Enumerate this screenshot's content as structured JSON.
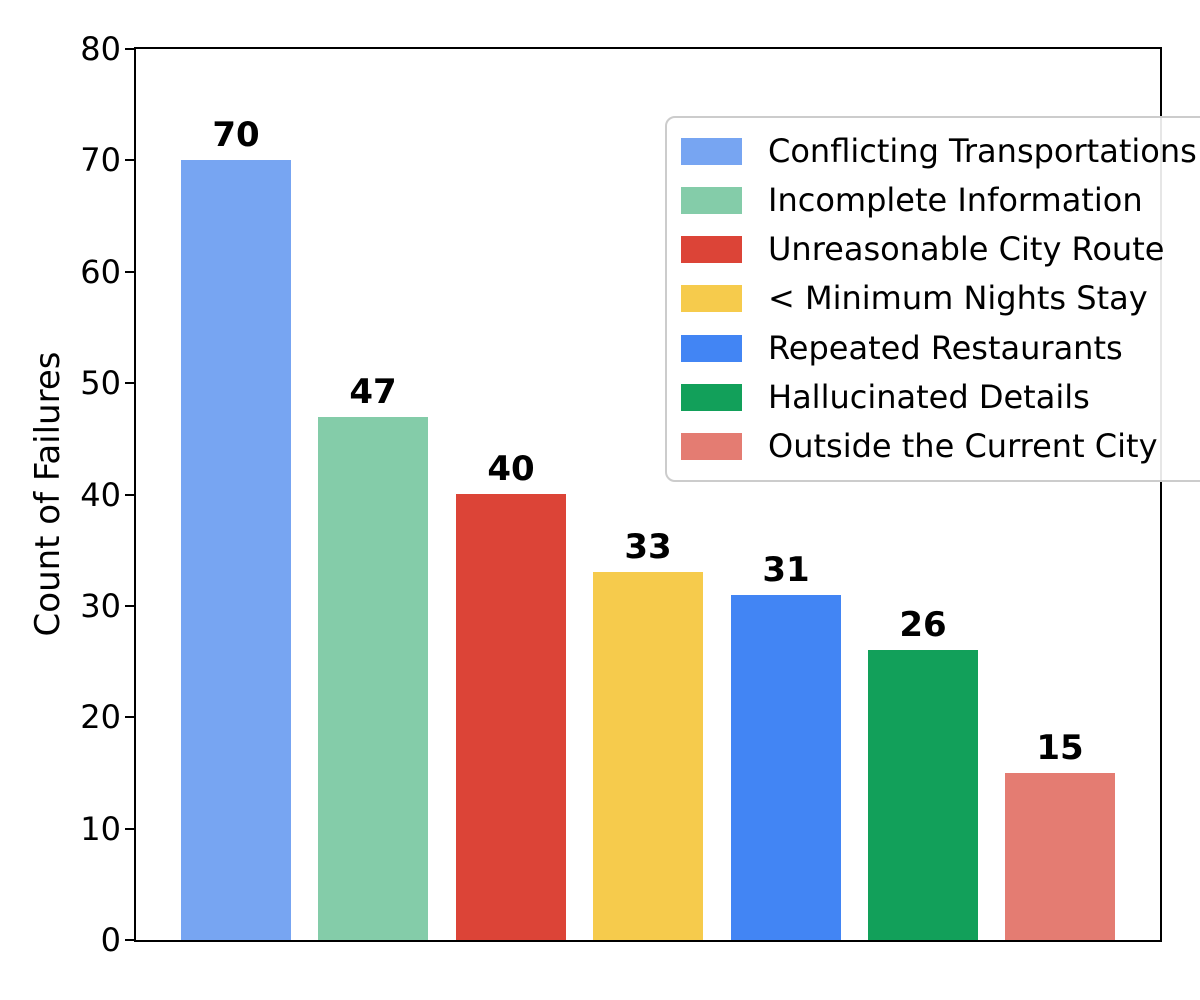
{
  "chart_data": {
    "type": "bar",
    "title": "",
    "xlabel": "",
    "ylabel": "Count of Failures",
    "ylim": [
      0,
      80
    ],
    "yticks": [
      0,
      10,
      20,
      30,
      40,
      50,
      60,
      70,
      80
    ],
    "categories": [
      "Conflicting Transportations",
      "Incomplete Information",
      "Unreasonable City Route",
      "< Minimum Nights Stay",
      "Repeated Restaurants",
      "Hallucinated Details",
      "Outside the Current City"
    ],
    "values": [
      70,
      47,
      40,
      33,
      31,
      26,
      15
    ],
    "bar_value_labels": [
      "70",
      "47",
      "40",
      "33",
      "31",
      "26",
      "15"
    ],
    "colors": [
      "#77A5F2",
      "#84CCA9",
      "#DC4437",
      "#F6CB4C",
      "#4285F4",
      "#12A05A",
      "#E47C72"
    ],
    "grid": false,
    "legend_position": "upper right",
    "axis_color": "#000000",
    "background_color": "#FFFFFF"
  }
}
